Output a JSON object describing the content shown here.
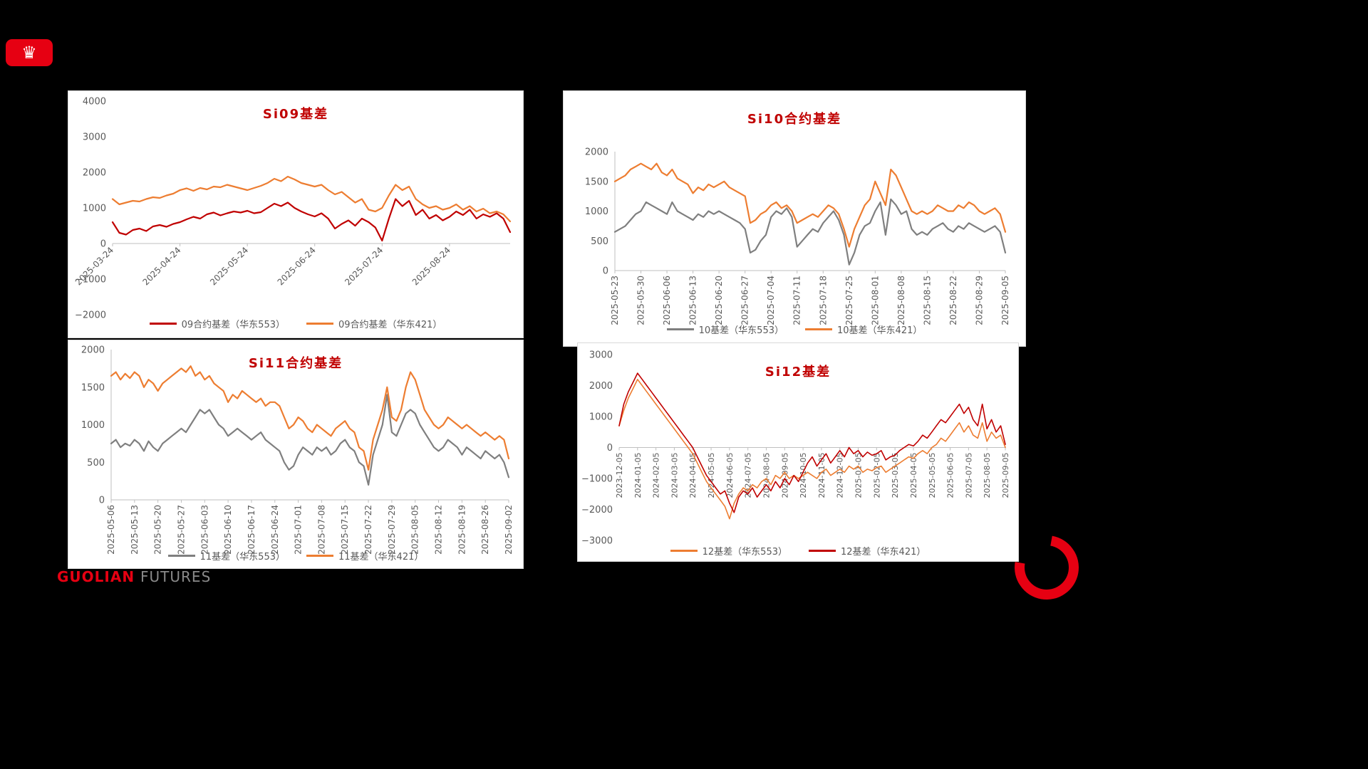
{
  "slide": {
    "background": "#000000"
  },
  "logos": {
    "crown_icon": "♛"
  },
  "brand": {
    "guolian": "GUOLIAN",
    "futures": "FUTURES",
    "red": "#E60012",
    "gray": "#8a8a8a"
  },
  "colors": {
    "red_series": "#C00000",
    "orange_series": "#ED7D31",
    "gray_series": "#7F7F7F",
    "axis": "#BFBFBF",
    "tick_text": "#595959"
  },
  "chart_data": [
    {
      "type": "line",
      "title": "Si09基差",
      "title_color": "#C00000",
      "ylim": [
        -2000,
        4000
      ],
      "yticks": [
        4000,
        3000,
        2000,
        1000,
        0,
        -1000,
        -2000
      ],
      "grid": false,
      "legend_position": "bottom",
      "x_tick_labels": [
        "2025-03-24",
        "2025-04-24",
        "2025-05-24",
        "2025-06-24",
        "2025-07-24",
        "2025-08-24"
      ],
      "series": [
        {
          "name": "09合约基差（华东553）",
          "color": "#C00000",
          "values": [
            600,
            300,
            250,
            380,
            420,
            350,
            480,
            520,
            470,
            550,
            600,
            680,
            750,
            700,
            820,
            870,
            790,
            850,
            900,
            870,
            920,
            850,
            880,
            1000,
            1120,
            1050,
            1150,
            1000,
            900,
            820,
            760,
            850,
            700,
            420,
            550,
            650,
            500,
            700,
            600,
            450,
            80,
            700,
            1250,
            1050,
            1200,
            800,
            950,
            700,
            800,
            650,
            750,
            900,
            800,
            950,
            700,
            820,
            750,
            850,
            700,
            320
          ]
        },
        {
          "name": "09合约基差（华东421）",
          "color": "#ED7D31",
          "values": [
            1250,
            1100,
            1150,
            1200,
            1180,
            1250,
            1300,
            1280,
            1350,
            1400,
            1500,
            1550,
            1480,
            1560,
            1520,
            1600,
            1580,
            1650,
            1600,
            1550,
            1500,
            1560,
            1620,
            1700,
            1820,
            1750,
            1880,
            1800,
            1700,
            1650,
            1600,
            1650,
            1500,
            1380,
            1450,
            1300,
            1150,
            1250,
            950,
            900,
            1000,
            1350,
            1650,
            1500,
            1600,
            1250,
            1100,
            1000,
            1050,
            950,
            1000,
            1100,
            950,
            1050,
            900,
            980,
            850,
            900,
            820,
            620
          ]
        }
      ]
    },
    {
      "type": "line",
      "title": "Si10合约基差",
      "title_color": "#C00000",
      "ylim": [
        0,
        2000
      ],
      "yticks": [
        2000,
        1500,
        1000,
        500,
        0
      ],
      "grid": false,
      "legend_position": "bottom",
      "x_tick_labels": [
        "2025-05-23",
        "2025-05-30",
        "2025-06-06",
        "2025-06-13",
        "2025-06-20",
        "2025-06-27",
        "2025-07-04",
        "2025-07-11",
        "2025-07-18",
        "2025-07-25",
        "2025-08-01",
        "2025-08-08",
        "2025-08-15",
        "2025-08-22",
        "2025-08-29",
        "2025-09-05"
      ],
      "series": [
        {
          "name": "10基差（华东553）",
          "color": "#7F7F7F",
          "values": [
            650,
            700,
            750,
            850,
            950,
            1000,
            1150,
            1100,
            1050,
            1000,
            950,
            1150,
            1000,
            950,
            900,
            850,
            950,
            900,
            1000,
            950,
            1000,
            950,
            900,
            850,
            800,
            700,
            300,
            350,
            500,
            600,
            900,
            1000,
            950,
            1050,
            900,
            400,
            500,
            600,
            700,
            650,
            800,
            900,
            1000,
            850,
            600,
            100,
            300,
            600,
            750,
            800,
            1000,
            1150,
            600,
            1200,
            1100,
            950,
            1000,
            700,
            600,
            650,
            600,
            700,
            750,
            800,
            700,
            650,
            750,
            700,
            800,
            750,
            700,
            650,
            700,
            750,
            650,
            300
          ]
        },
        {
          "name": "10基差（华东421）",
          "color": "#ED7D31",
          "values": [
            1500,
            1550,
            1600,
            1700,
            1750,
            1800,
            1750,
            1700,
            1800,
            1650,
            1600,
            1700,
            1550,
            1500,
            1450,
            1300,
            1400,
            1350,
            1450,
            1400,
            1450,
            1500,
            1400,
            1350,
            1300,
            1250,
            800,
            850,
            950,
            1000,
            1100,
            1150,
            1050,
            1100,
            1000,
            800,
            850,
            900,
            950,
            900,
            1000,
            1100,
            1050,
            950,
            700,
            400,
            700,
            900,
            1100,
            1200,
            1500,
            1300,
            1100,
            1700,
            1600,
            1400,
            1200,
            1000,
            950,
            1000,
            950,
            1000,
            1100,
            1050,
            1000,
            1000,
            1100,
            1050,
            1150,
            1100,
            1000,
            950,
            1000,
            1050,
            950,
            650
          ]
        }
      ]
    },
    {
      "type": "line",
      "title": "Si11合约基差",
      "title_color": "#C00000",
      "ylim": [
        0,
        2000
      ],
      "yticks": [
        2000,
        1500,
        1000,
        500,
        0
      ],
      "grid": false,
      "legend_position": "bottom",
      "x_tick_labels": [
        "2025-05-06",
        "2025-05-13",
        "2025-05-20",
        "2025-05-27",
        "2025-06-03",
        "2025-06-10",
        "2025-06-17",
        "2025-06-24",
        "2025-07-01",
        "2025-07-08",
        "2025-07-15",
        "2025-07-22",
        "2025-07-29",
        "2025-08-05",
        "2025-08-12",
        "2025-08-19",
        "2025-08-26",
        "2025-09-02"
      ],
      "series": [
        {
          "name": "11基差（华东553）",
          "color": "#7F7F7F",
          "values": [
            750,
            800,
            700,
            750,
            720,
            800,
            750,
            650,
            780,
            700,
            650,
            750,
            800,
            850,
            900,
            950,
            900,
            1000,
            1100,
            1200,
            1150,
            1200,
            1100,
            1000,
            950,
            850,
            900,
            950,
            900,
            850,
            800,
            850,
            900,
            800,
            750,
            700,
            650,
            500,
            400,
            450,
            600,
            700,
            650,
            600,
            700,
            650,
            700,
            600,
            650,
            750,
            800,
            700,
            650,
            500,
            450,
            200,
            600,
            800,
            1000,
            1400,
            900,
            850,
            1000,
            1150,
            1200,
            1150,
            1000,
            900,
            800,
            700,
            650,
            700,
            800,
            750,
            700,
            600,
            700,
            650,
            600,
            550,
            650,
            600,
            550,
            600,
            500,
            300
          ]
        },
        {
          "name": "11基差（华东421）",
          "color": "#ED7D31",
          "values": [
            1650,
            1700,
            1600,
            1680,
            1620,
            1700,
            1650,
            1500,
            1600,
            1550,
            1450,
            1550,
            1600,
            1650,
            1700,
            1750,
            1700,
            1780,
            1650,
            1700,
            1600,
            1650,
            1550,
            1500,
            1450,
            1300,
            1400,
            1350,
            1450,
            1400,
            1350,
            1300,
            1350,
            1250,
            1300,
            1300,
            1250,
            1100,
            950,
            1000,
            1100,
            1050,
            950,
            900,
            1000,
            950,
            900,
            850,
            950,
            1000,
            1050,
            950,
            900,
            700,
            650,
            400,
            800,
            1000,
            1200,
            1500,
            1100,
            1050,
            1200,
            1500,
            1700,
            1600,
            1400,
            1200,
            1100,
            1000,
            950,
            1000,
            1100,
            1050,
            1000,
            950,
            1000,
            950,
            900,
            850,
            900,
            850,
            800,
            850,
            800,
            550
          ]
        }
      ]
    },
    {
      "type": "line",
      "title": "Si12基差",
      "title_color": "#C00000",
      "ylim": [
        -3000,
        3000
      ],
      "yticks": [
        3000,
        2000,
        1000,
        0,
        -1000,
        -2000,
        -3000
      ],
      "grid": false,
      "legend_position": "bottom",
      "x_tick_labels": [
        "2023-12-05",
        "2024-01-05",
        "2024-02-05",
        "2024-03-05",
        "2024-04-05",
        "2024-05-05",
        "2024-06-05",
        "2024-07-05",
        "2024-08-05",
        "2024-09-05",
        "2024-10-05",
        "2024-11-05",
        "2024-12-05",
        "2025-01-05",
        "2025-02-05",
        "2025-03-05",
        "2025-04-05",
        "2025-05-05",
        "2025-06-05",
        "2025-07-05",
        "2025-08-05",
        "2025-09-05"
      ],
      "series": [
        {
          "name": "12基差（华东553）",
          "color": "#ED7D31",
          "values": [
            700,
            1200,
            1600,
            1900,
            2200,
            2000,
            1800,
            1600,
            1400,
            1200,
            1000,
            800,
            600,
            400,
            200,
            0,
            -200,
            -500,
            -800,
            -1100,
            -1300,
            -1500,
            -1700,
            -1900,
            -2300,
            -1800,
            -1500,
            -1300,
            -1400,
            -1200,
            -1300,
            -1100,
            -1000,
            -1200,
            -900,
            -1000,
            -800,
            -1000,
            -900,
            -1000,
            -900,
            -800,
            -900,
            -1000,
            -800,
            -700,
            -900,
            -800,
            -700,
            -800,
            -600,
            -700,
            -600,
            -800,
            -700,
            -750,
            -650,
            -600,
            -800,
            -700,
            -600,
            -500,
            -400,
            -300,
            -350,
            -200,
            -100,
            -200,
            0,
            100,
            300,
            200,
            400,
            600,
            800,
            500,
            700,
            400,
            300,
            800,
            200,
            500,
            300,
            400,
            0
          ]
        },
        {
          "name": "12基差（华东421）",
          "color": "#C00000",
          "values": [
            700,
            1400,
            1800,
            2100,
            2400,
            2200,
            2000,
            1800,
            1600,
            1400,
            1200,
            1000,
            800,
            600,
            400,
            200,
            0,
            -300,
            -600,
            -900,
            -1100,
            -1300,
            -1500,
            -1400,
            -1800,
            -2100,
            -1600,
            -1400,
            -1500,
            -1300,
            -1600,
            -1400,
            -1200,
            -1400,
            -1100,
            -1300,
            -1000,
            -1200,
            -900,
            -1100,
            -800,
            -500,
            -300,
            -600,
            -400,
            -200,
            -500,
            -300,
            -100,
            -300,
            0,
            -200,
            -100,
            -300,
            -150,
            -250,
            -200,
            -100,
            -400,
            -300,
            -250,
            -100,
            0,
            100,
            50,
            200,
            400,
            300,
            500,
            700,
            900,
            800,
            1000,
            1200,
            1400,
            1100,
            1300,
            900,
            700,
            1400,
            600,
            900,
            500,
            700,
            100
          ]
        }
      ]
    }
  ]
}
